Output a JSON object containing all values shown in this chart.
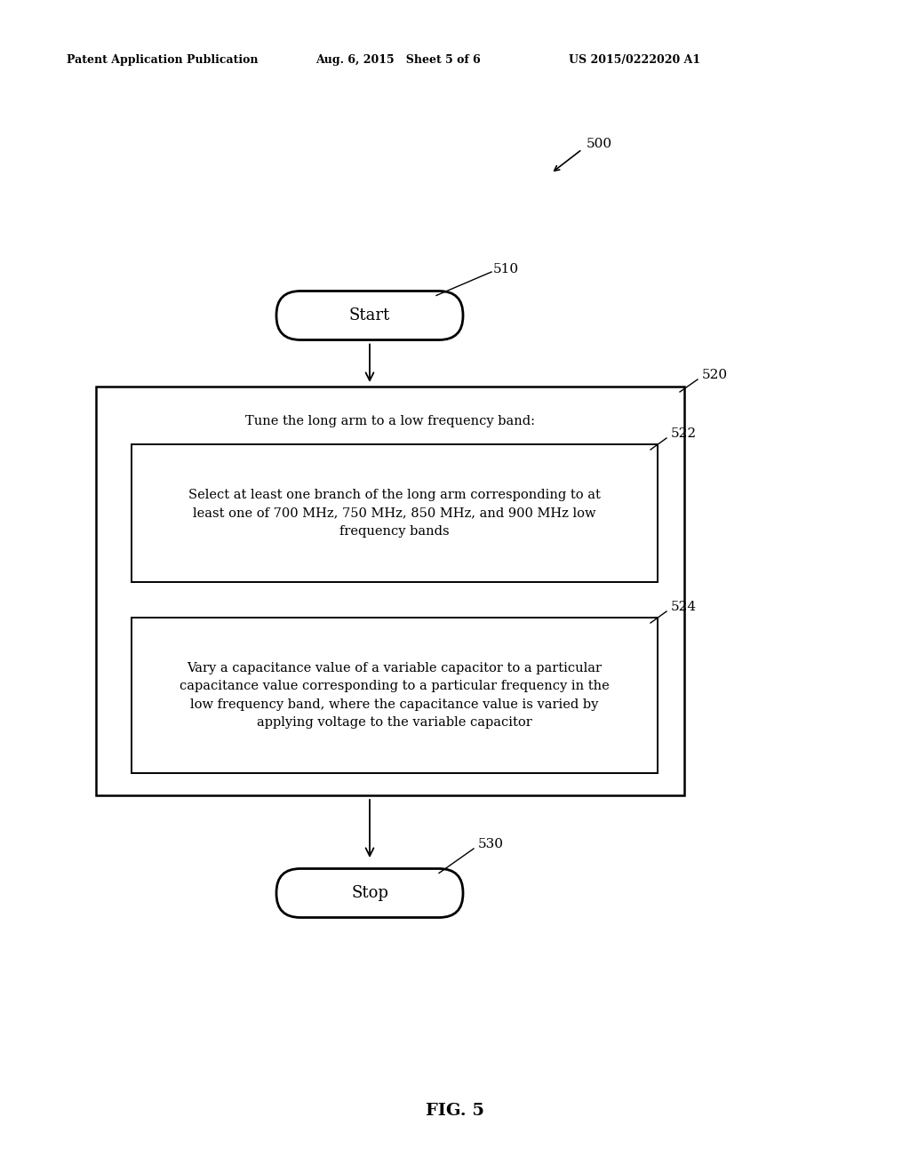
{
  "bg_color": "#ffffff",
  "header_left": "Patent Application Publication",
  "header_mid": "Aug. 6, 2015   Sheet 5 of 6",
  "header_right": "US 2015/0222020 A1",
  "fig_label": "FIG. 5",
  "label_500": "500",
  "label_510": "510",
  "label_520": "520",
  "label_522": "522",
  "label_524": "524",
  "label_530": "530",
  "start_text": "Start",
  "stop_text": "Stop",
  "box520_text": "Tune the long arm to a low frequency band:",
  "box522_text": "Select at least one branch of the long arm corresponding to at\nleast one of 700 MHz, 750 MHz, 850 MHz, and 900 MHz low\nfrequency bands",
  "box524_text": "Vary a capacitance value of a variable capacitor to a particular\ncapacitance value corresponding to a particular frequency in the\nlow frequency band, where the capacitance value is varied by\napplying voltage to the variable capacitor"
}
